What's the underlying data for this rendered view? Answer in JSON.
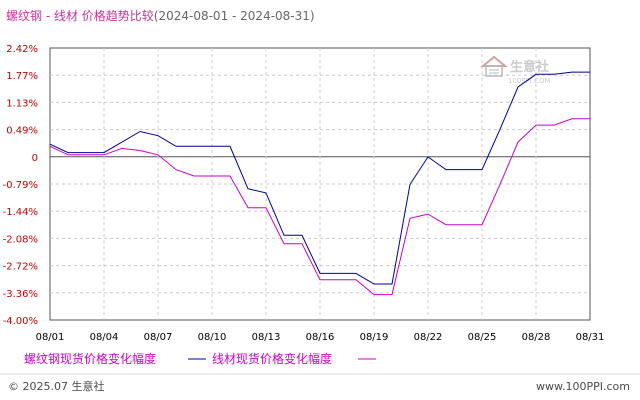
{
  "chart_data": {
    "type": "line",
    "title": "螺纹钢 - 线材 价格趋势比较",
    "date_range": "(2024-08-01 - 2024-08-31)",
    "x": [
      "08/01",
      "08/02",
      "08/03",
      "08/04",
      "08/05",
      "08/06",
      "08/07",
      "08/08",
      "08/09",
      "08/10",
      "08/11",
      "08/12",
      "08/13",
      "08/14",
      "08/15",
      "08/16",
      "08/17",
      "08/18",
      "08/19",
      "08/20",
      "08/21",
      "08/22",
      "08/23",
      "08/24",
      "08/25",
      "08/26",
      "08/27",
      "08/28",
      "08/29",
      "08/30",
      "08/31"
    ],
    "x_tick_labels": [
      "08/01",
      "08/04",
      "08/07",
      "08/10",
      "08/13",
      "08/16",
      "08/19",
      "08/22",
      "08/25",
      "08/28",
      "08/31"
    ],
    "y_tick_labels": [
      "2.42%",
      "1.77%",
      "1.13%",
      "0.49%",
      "0",
      "-0.79%",
      "-1.44%",
      "-2.08%",
      "-2.72%",
      "-3.36%",
      "-4.00%"
    ],
    "ylim": [
      -4.0,
      2.42
    ],
    "grid": true,
    "series": [
      {
        "name": "螺纹钢现货价格变化幅度",
        "color": "#000099",
        "values": [
          0.15,
          -0.05,
          -0.05,
          -0.05,
          0.2,
          0.45,
          0.35,
          0.1,
          0.1,
          0.1,
          0.1,
          -0.9,
          -1.0,
          -2.0,
          -2.0,
          -2.9,
          -2.9,
          -2.9,
          -3.15,
          -3.15,
          -0.8,
          -0.15,
          -0.45,
          -0.45,
          -0.45,
          0.5,
          1.5,
          1.8,
          1.8,
          1.85,
          1.85
        ]
      },
      {
        "name": "线材现货价格变化幅度",
        "color": "#cc00cc",
        "values": [
          0.1,
          -0.1,
          -0.1,
          -0.1,
          0.05,
          0.0,
          -0.1,
          -0.45,
          -0.6,
          -0.6,
          -0.6,
          -1.35,
          -1.35,
          -2.2,
          -2.2,
          -3.05,
          -3.05,
          -3.05,
          -3.4,
          -3.4,
          -1.6,
          -1.5,
          -1.75,
          -1.75,
          -1.75,
          -0.8,
          0.2,
          0.6,
          0.6,
          0.75,
          0.75
        ]
      }
    ]
  },
  "footer": {
    "copyright": "© 2025.07 生意社",
    "site": "www.100PPI.com"
  },
  "watermark": {
    "text": "生意社",
    "sub": "100PPI.COM"
  }
}
